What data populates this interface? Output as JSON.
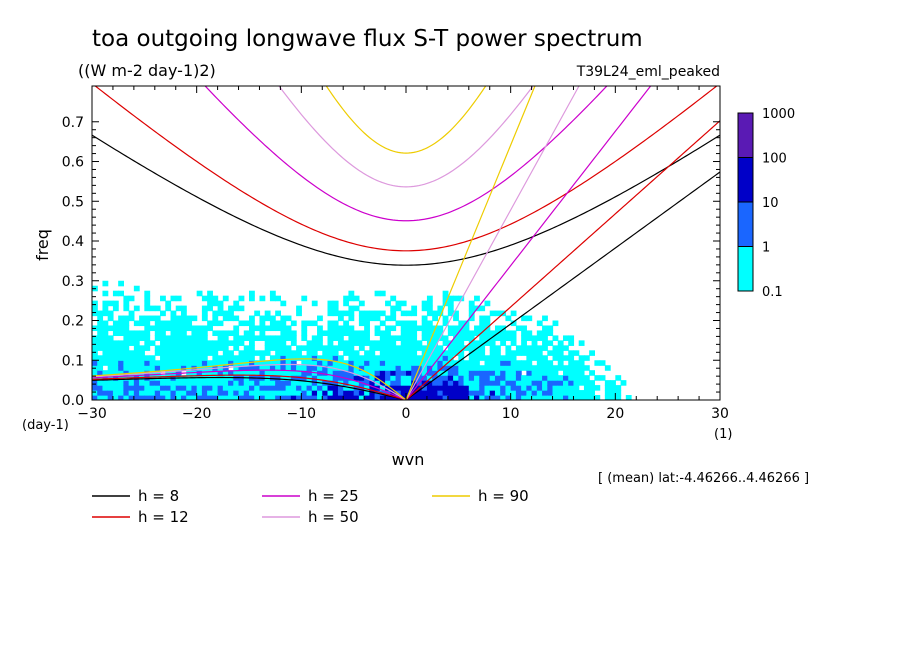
{
  "chart_data": {
    "type": "heatmap",
    "title": "toa outgoing longwave flux S-T power spectrum",
    "subtitle": "((W m-2 day-1)2)",
    "run_label": "T39L24_eml_peaked",
    "xlabel": "wvn",
    "ylabel": "freq",
    "x_unit": "(1)",
    "y_unit": "(day-1)",
    "xlim": [
      -30,
      30
    ],
    "ylim": [
      0,
      0.79
    ],
    "xticks": [
      -30,
      -20,
      -10,
      0,
      10,
      20,
      30
    ],
    "yticks": [
      0.0,
      0.1,
      0.2,
      0.3,
      0.4,
      0.5,
      0.6,
      0.7
    ],
    "grid": false,
    "colorbar": {
      "levels": [
        "0.1",
        "1",
        "10",
        "100",
        "1000"
      ],
      "colors": [
        "#00ffff",
        "#1a66ff",
        "#0000c8",
        "#5a1ab4"
      ]
    },
    "shaded_regions": [
      {
        "level": "0.1-1",
        "region": "broad background, wvn -30..25, freq 0..0.48"
      },
      {
        "level": "1-10",
        "region": "wvn -12..10, freq 0..0.10"
      },
      {
        "level": "10-100",
        "region": "small patches near wvn 0..5, freq 0..0.04"
      }
    ],
    "dispersion_curves": {
      "legend": [
        {
          "label": "h =  8",
          "h": 8,
          "color": "#000000"
        },
        {
          "label": "h = 12",
          "h": 12,
          "color": "#dd0000"
        },
        {
          "label": "h = 25",
          "h": 25,
          "color": "#cc00cc"
        },
        {
          "label": "h = 50",
          "h": 50,
          "color": "#dd99dd"
        },
        {
          "label": "h = 90",
          "h": 90,
          "color": "#eecc00"
        }
      ],
      "families": [
        "kelvin",
        "inertia-gravity n=1",
        "rossby n=1"
      ]
    },
    "footnote": "[ (mean) lat:-4.46266..4.46266 ]"
  }
}
